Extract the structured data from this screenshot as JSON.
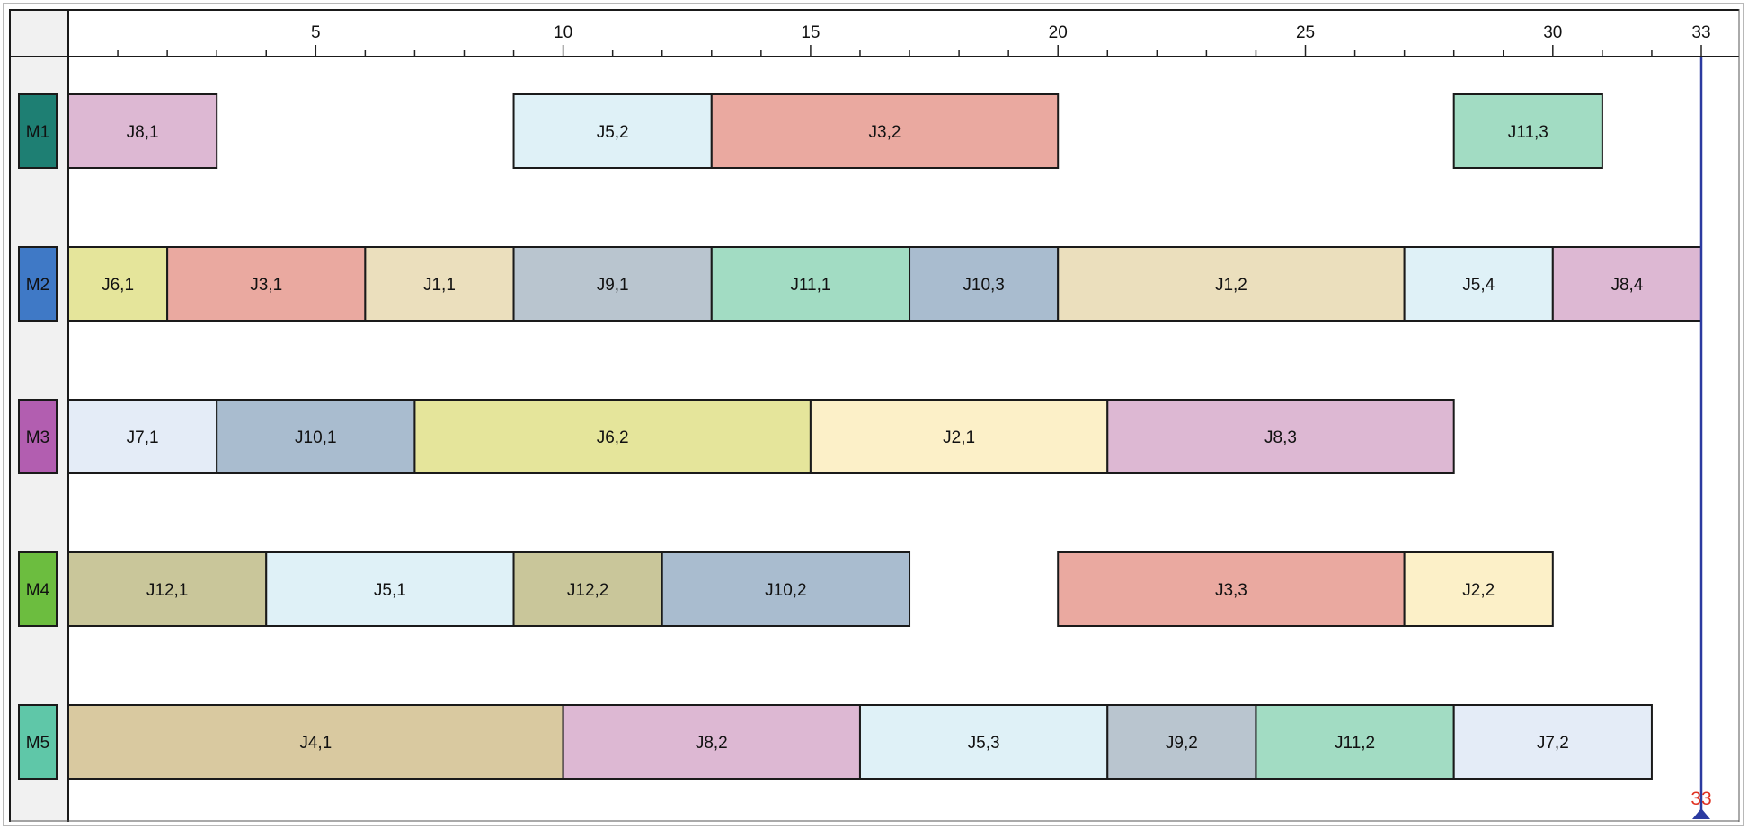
{
  "chart_data": {
    "type": "gantt",
    "title": "",
    "xlabel": "",
    "ylabel": "",
    "xlim": [
      0,
      33
    ],
    "x_ticks": [
      5,
      10,
      15,
      20,
      25,
      30,
      33
    ],
    "makespan": 33,
    "makespan_label": "33",
    "makespan_color": "#e03020",
    "machines": [
      {
        "id": "M1",
        "color": "#1e7f73"
      },
      {
        "id": "M2",
        "color": "#3f79c6"
      },
      {
        "id": "M3",
        "color": "#b25eb0"
      },
      {
        "id": "M4",
        "color": "#6cbd3f"
      },
      {
        "id": "M5",
        "color": "#5fc7a8"
      }
    ],
    "tasks": [
      {
        "machine": "M1",
        "label": "J8,1",
        "start": 0,
        "end": 3,
        "color": "#ddb8d3"
      },
      {
        "machine": "M1",
        "label": "J5,2",
        "start": 9,
        "end": 13,
        "color": "#dff1f7"
      },
      {
        "machine": "M1",
        "label": "J3,2",
        "start": 13,
        "end": 20,
        "color": "#eaa9a0"
      },
      {
        "machine": "M1",
        "label": "J11,3",
        "start": 28,
        "end": 31,
        "color": "#a2dcc3"
      },
      {
        "machine": "M2",
        "label": "J6,1",
        "start": 0,
        "end": 2,
        "color": "#e5e59b"
      },
      {
        "machine": "M2",
        "label": "J3,1",
        "start": 2,
        "end": 6,
        "color": "#eaa9a0"
      },
      {
        "machine": "M2",
        "label": "J1,1",
        "start": 6,
        "end": 9,
        "color": "#ebdfbd"
      },
      {
        "machine": "M2",
        "label": "J9,1",
        "start": 9,
        "end": 13,
        "color": "#b9c5cf"
      },
      {
        "machine": "M2",
        "label": "J11,1",
        "start": 13,
        "end": 17,
        "color": "#a2dcc3"
      },
      {
        "machine": "M2",
        "label": "J10,3",
        "start": 17,
        "end": 20,
        "color": "#a9bccf"
      },
      {
        "machine": "M2",
        "label": "J1,2",
        "start": 20,
        "end": 27,
        "color": "#ebdfbd"
      },
      {
        "machine": "M2",
        "label": "J5,4",
        "start": 27,
        "end": 30,
        "color": "#dff1f7"
      },
      {
        "machine": "M2",
        "label": "J8,4",
        "start": 30,
        "end": 33,
        "color": "#ddb8d3"
      },
      {
        "machine": "M3",
        "label": "J7,1",
        "start": 0,
        "end": 3,
        "color": "#e4ecf7"
      },
      {
        "machine": "M3",
        "label": "J10,1",
        "start": 3,
        "end": 7,
        "color": "#a9bccf"
      },
      {
        "machine": "M3",
        "label": "J6,2",
        "start": 7,
        "end": 15,
        "color": "#e5e59b"
      },
      {
        "machine": "M3",
        "label": "J2,1",
        "start": 15,
        "end": 21,
        "color": "#fcf0c8"
      },
      {
        "machine": "M3",
        "label": "J8,3",
        "start": 21,
        "end": 28,
        "color": "#ddb8d3"
      },
      {
        "machine": "M4",
        "label": "J12,1",
        "start": 0,
        "end": 4,
        "color": "#c9c69a"
      },
      {
        "machine": "M4",
        "label": "J5,1",
        "start": 4,
        "end": 9,
        "color": "#dff1f7"
      },
      {
        "machine": "M4",
        "label": "J12,2",
        "start": 9,
        "end": 12,
        "color": "#c9c69a"
      },
      {
        "machine": "M4",
        "label": "J10,2",
        "start": 12,
        "end": 17,
        "color": "#a9bccf"
      },
      {
        "machine": "M4",
        "label": "J3,3",
        "start": 20,
        "end": 27,
        "color": "#eaa9a0"
      },
      {
        "machine": "M4",
        "label": "J2,2",
        "start": 27,
        "end": 30,
        "color": "#fcf0c8"
      },
      {
        "machine": "M5",
        "label": "J4,1",
        "start": 0,
        "end": 10,
        "color": "#d9c9a0"
      },
      {
        "machine": "M5",
        "label": "J8,2",
        "start": 10,
        "end": 16,
        "color": "#ddb8d3"
      },
      {
        "machine": "M5",
        "label": "J5,3",
        "start": 16,
        "end": 21,
        "color": "#dff1f7"
      },
      {
        "machine": "M5",
        "label": "J9,2",
        "start": 21,
        "end": 24,
        "color": "#b9c5cf"
      },
      {
        "machine": "M5",
        "label": "J11,2",
        "start": 24,
        "end": 28,
        "color": "#a2dcc3"
      },
      {
        "machine": "M5",
        "label": "J7,2",
        "start": 28,
        "end": 32,
        "color": "#e4ecf7"
      }
    ]
  }
}
